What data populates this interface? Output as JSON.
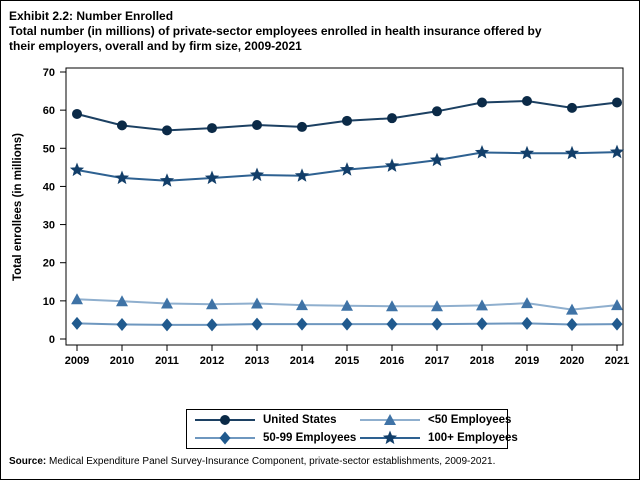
{
  "title": {
    "line1": "Exhibit 2.2: Number Enrolled",
    "line2": "Total number (in millions) of private-sector employees enrolled in health insurance offered by",
    "line3": "their employers, overall and by firm size, 2009-2021"
  },
  "source": {
    "label": "Source:",
    "text": " Medical Expenditure Panel Survey-Insurance Component, private-sector establishments, 2009-2021."
  },
  "legend": {
    "items": [
      {
        "label": "United States",
        "marker": "circle",
        "series": 0
      },
      {
        "label": "<50 Employees",
        "marker": "triangle",
        "series": 1
      },
      {
        "label": "50-99 Employees",
        "marker": "diamond",
        "series": 2
      },
      {
        "label": "100+ Employees",
        "marker": "star",
        "series": 3
      }
    ]
  },
  "chart_data": {
    "type": "line",
    "title": "",
    "xlabel": "",
    "ylabel": "Total enrollees (in millions)",
    "ylim": [
      0,
      70
    ],
    "yticks": [
      0,
      10,
      20,
      30,
      40,
      50,
      60,
      70
    ],
    "grid": false,
    "legend_position": "bottom",
    "categories": [
      "2009",
      "2010",
      "2011",
      "2012",
      "2013",
      "2014",
      "2015",
      "2016",
      "2017",
      "2018",
      "2019",
      "2020",
      "2021"
    ],
    "series": [
      {
        "name": "United States",
        "marker": "circle",
        "marker_color": "#0b2a47",
        "line_color": "#1c4062",
        "values": [
          59.0,
          56.0,
          54.7,
          55.3,
          56.1,
          55.6,
          57.2,
          57.9,
          59.7,
          62.0,
          62.4,
          60.6,
          62.0
        ]
      },
      {
        "name": "<50 Employees",
        "marker": "triangle",
        "marker_color": "#3f73a6",
        "line_color": "#8fafce",
        "values": [
          10.4,
          9.9,
          9.3,
          9.1,
          9.3,
          8.9,
          8.7,
          8.6,
          8.6,
          8.8,
          9.4,
          7.7,
          8.9
        ]
      },
      {
        "name": "50-99 Employees",
        "marker": "diamond",
        "marker_color": "#205a8e",
        "line_color": "#6e97bf",
        "values": [
          4.1,
          3.8,
          3.7,
          3.7,
          3.9,
          3.9,
          3.9,
          3.9,
          3.9,
          4.0,
          4.1,
          3.8,
          3.9
        ]
      },
      {
        "name": "100+ Employees",
        "marker": "star",
        "marker_color": "#123e69",
        "line_color": "#2e6191",
        "values": [
          44.3,
          42.2,
          41.5,
          42.2,
          43.0,
          42.8,
          44.4,
          45.4,
          46.9,
          48.9,
          48.7,
          48.7,
          49.0
        ]
      }
    ]
  }
}
